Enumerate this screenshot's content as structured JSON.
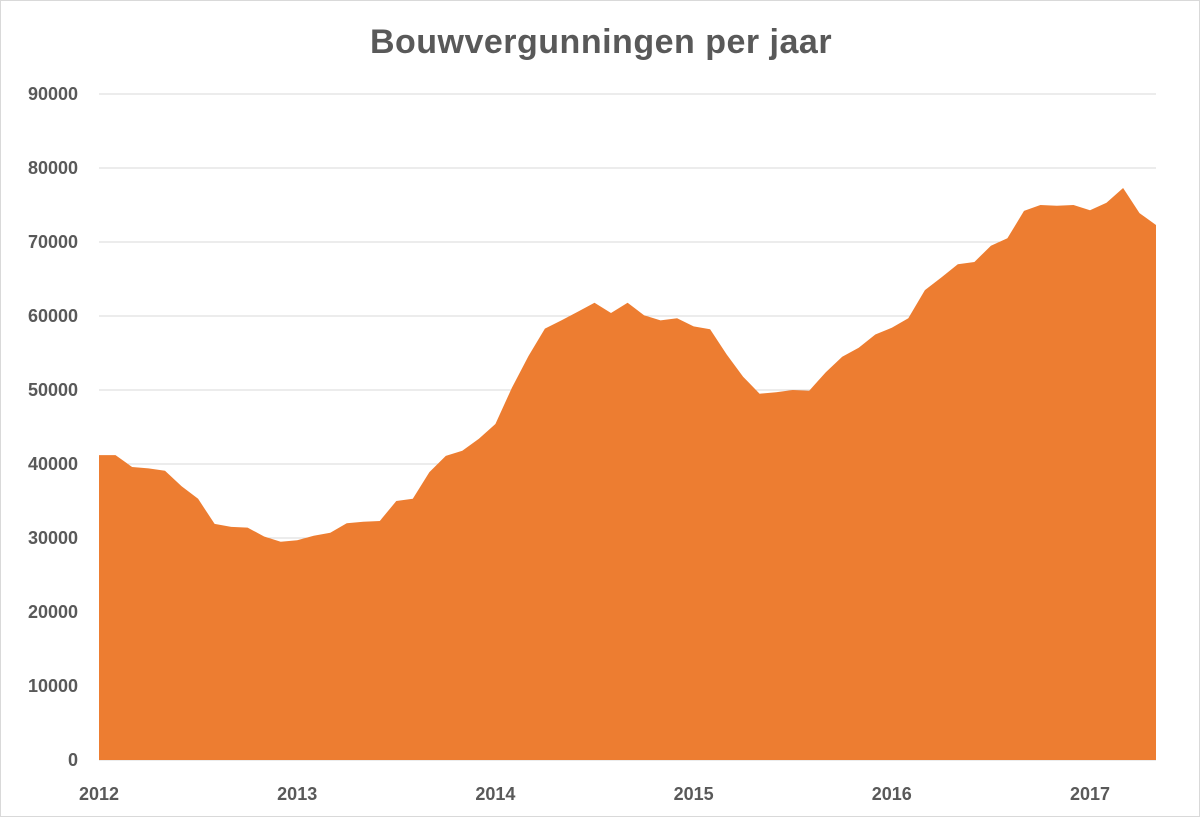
{
  "chart_data": {
    "type": "area",
    "title": "Bouwvergunningen per jaar",
    "xlabel": "",
    "ylabel": "",
    "ylim": [
      0,
      90000
    ],
    "yticks": [
      0,
      10000,
      20000,
      30000,
      40000,
      50000,
      60000,
      70000,
      80000,
      90000
    ],
    "xticks": [
      {
        "label": "2012",
        "value": 2012.0
      },
      {
        "label": "2013",
        "value": 2013.0
      },
      {
        "label": "2014",
        "value": 2014.0
      },
      {
        "label": "2015",
        "value": 2015.0
      },
      {
        "label": "2016",
        "value": 2016.0
      },
      {
        "label": "2017",
        "value": 2017.0
      }
    ],
    "xlim": [
      2012.0,
      2017.333
    ],
    "grid": true,
    "color": "#ED7D31",
    "series": [
      {
        "x": [
          2012.0,
          2012.083,
          2012.167,
          2012.25,
          2012.333,
          2012.417,
          2012.5,
          2012.583,
          2012.667,
          2012.75,
          2012.833,
          2012.917,
          2013.0,
          2013.083,
          2013.167,
          2013.25,
          2013.333,
          2013.417,
          2013.5,
          2013.583,
          2013.667,
          2013.75,
          2013.833,
          2013.917,
          2014.0,
          2014.083,
          2014.167,
          2014.25,
          2014.333,
          2014.417,
          2014.5,
          2014.583,
          2014.667,
          2014.75,
          2014.833,
          2014.917,
          2015.0,
          2015.083,
          2015.167,
          2015.25,
          2015.333,
          2015.417,
          2015.5,
          2015.583,
          2015.667,
          2015.75,
          2015.833,
          2015.917,
          2016.0,
          2016.083,
          2016.167,
          2016.25,
          2016.333,
          2016.417,
          2016.5,
          2016.583,
          2016.667,
          2016.75,
          2016.833,
          2016.917,
          2017.0,
          2017.083,
          2017.167,
          2017.25,
          2017.333
        ],
        "values": [
          41200,
          41200,
          39600,
          39400,
          39100,
          37000,
          35300,
          31900,
          31500,
          31400,
          30200,
          29500,
          29700,
          30300,
          30700,
          32000,
          32200,
          32300,
          35000,
          35300,
          38900,
          41100,
          41800,
          43400,
          45400,
          50300,
          54600,
          58300,
          59400,
          60600,
          61800,
          60400,
          61800,
          60100,
          59400,
          59700,
          58600,
          58200,
          54800,
          51800,
          49500,
          49700,
          50000,
          49900,
          52400,
          54500,
          55700,
          57500,
          58400,
          59700,
          63500,
          65200,
          67000,
          67300,
          69500,
          70500,
          74200,
          75000,
          74900,
          75000,
          74300,
          75300,
          77300,
          73900,
          72300
        ]
      }
    ]
  }
}
